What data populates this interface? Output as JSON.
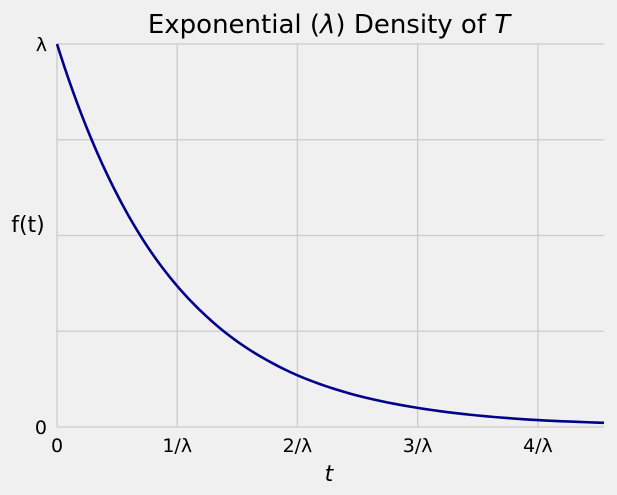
{
  "chart_data": {
    "type": "line",
    "title_prefix": "Exponential (",
    "title_symbol": "λ",
    "title_middle": ") Density of ",
    "title_variable": "T",
    "xlabel": "t",
    "ylabel": "f(t)",
    "x_unit": "1/λ",
    "y_unit": "λ",
    "xlim": [
      0,
      4.55
    ],
    "ylim": [
      0,
      1
    ],
    "x_ticks": [
      {
        "value": 0,
        "label": "0"
      },
      {
        "value": 1,
        "label": "1/λ"
      },
      {
        "value": 2,
        "label": "2/λ"
      },
      {
        "value": 3,
        "label": "3/λ"
      },
      {
        "value": 4,
        "label": "4/λ"
      }
    ],
    "y_ticks": [
      {
        "value": 0,
        "label": "0"
      },
      {
        "value": 0.25,
        "label": ""
      },
      {
        "value": 0.5,
        "label": ""
      },
      {
        "value": 0.75,
        "label": ""
      },
      {
        "value": 1,
        "label": "λ"
      }
    ],
    "function": "λ·e^(−λt)",
    "series": [
      {
        "color": "#00008b",
        "x": [
          0,
          0.25,
          0.5,
          0.75,
          1,
          1.25,
          1.5,
          1.75,
          2,
          2.5,
          3,
          3.5,
          4,
          4.55
        ],
        "y": [
          1,
          0.779,
          0.607,
          0.472,
          0.368,
          0.287,
          0.223,
          0.174,
          0.135,
          0.082,
          0.05,
          0.03,
          0.018,
          0.011
        ]
      }
    ],
    "grid": true,
    "background_color": "#f0f0f0",
    "grid_color": "#cbcbcb"
  }
}
